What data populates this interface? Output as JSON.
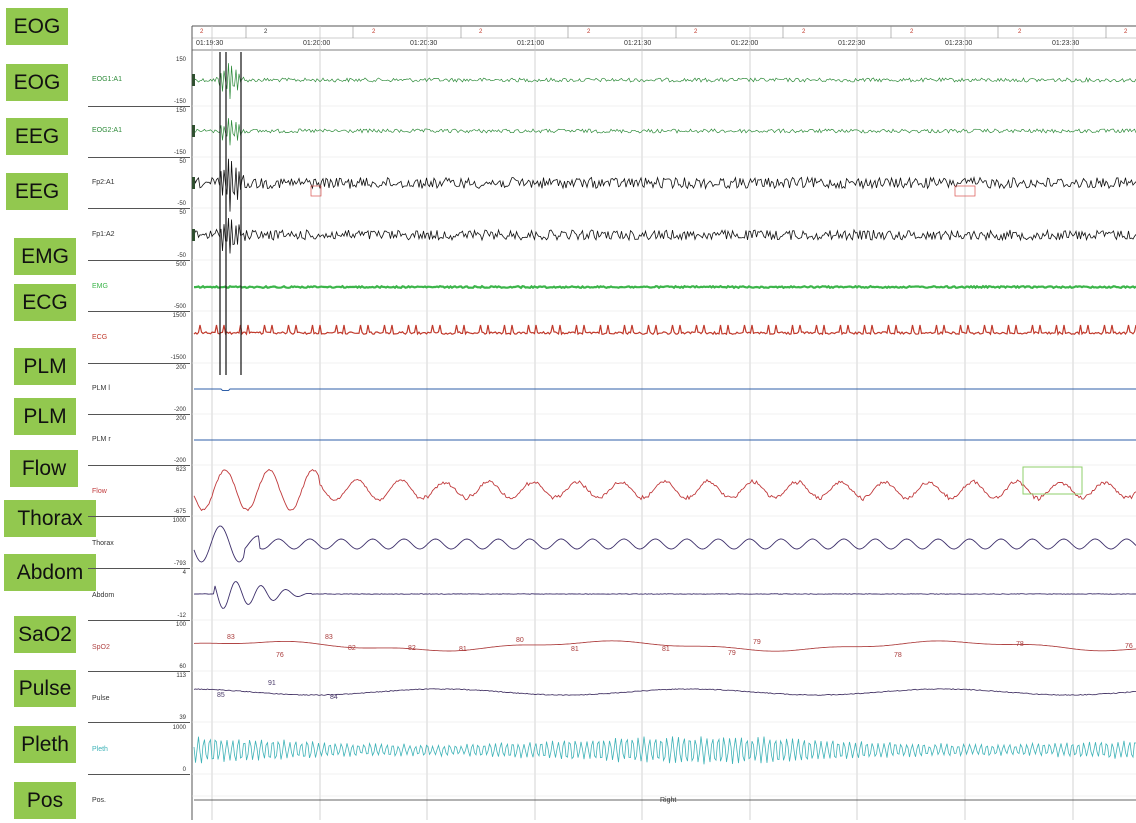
{
  "tags": [
    "EOG",
    "EOG",
    "EEG",
    "EEG",
    "EMG",
    "ECG",
    "PLM",
    "PLM",
    "Flow",
    "Thorax",
    "Abdom",
    "SaO2",
    "Pulse",
    "Pleth",
    "Pos"
  ],
  "timeline": {
    "times": [
      "01:19:30",
      "01:20:00",
      "01:20:30",
      "01:21:00",
      "01:21:30",
      "01:22:00",
      "01:22:30",
      "01:23:00",
      "01:23:30"
    ],
    "epochs": [
      "2",
      "2",
      "2",
      "2",
      "2",
      "2",
      "2",
      "2",
      "2",
      "2",
      "2"
    ]
  },
  "channels": [
    {
      "name": "EOG1:A1",
      "top": "150",
      "bottom": "-150",
      "color": "#2e8b3a"
    },
    {
      "name": "EOG2:A1",
      "top": "150",
      "bottom": "-150",
      "color": "#2e8b3a"
    },
    {
      "name": "Fp2:A1",
      "top": "50",
      "bottom": "-50",
      "color": "#111111"
    },
    {
      "name": "Fp1:A2",
      "top": "50",
      "bottom": "-50",
      "color": "#111111"
    },
    {
      "name": "EMG",
      "top": "500",
      "bottom": "-500",
      "color": "#3cb54a"
    },
    {
      "name": "ECG",
      "top": "1500",
      "bottom": "-1500",
      "color": "#c0392b"
    },
    {
      "name": "PLM l",
      "top": "200",
      "bottom": "-200",
      "color": "#2f5fa8"
    },
    {
      "name": "PLM r",
      "top": "200",
      "bottom": "-200",
      "color": "#2f5fa8"
    },
    {
      "name": "Flow",
      "top": "623",
      "bottom": "-675",
      "color": "#c0393b"
    },
    {
      "name": "Thorax",
      "top": "1000",
      "bottom": "-793",
      "color": "#3d2f6b"
    },
    {
      "name": "Abdom",
      "top": "4",
      "bottom": "-12",
      "color": "#3d2f6b"
    },
    {
      "name": "SpO2",
      "top": "100",
      "bottom": "60",
      "color": "#b04545"
    },
    {
      "name": "Pulse",
      "top": "113",
      "bottom": "39",
      "color": "#4a3a6a"
    },
    {
      "name": "Pleth",
      "top": "1000",
      "bottom": "0",
      "color": "#3fb3b8"
    },
    {
      "name": "Pos.",
      "top": "",
      "bottom": "",
      "color": "#333333"
    }
  ],
  "spo2_values": [
    "83",
    "76",
    "83",
    "82",
    "82",
    "81",
    "80",
    "81",
    "81",
    "79",
    "79",
    "78",
    "78",
    "76"
  ],
  "pulse_values": [
    "85",
    "91",
    "84"
  ],
  "position_value": "Right"
}
